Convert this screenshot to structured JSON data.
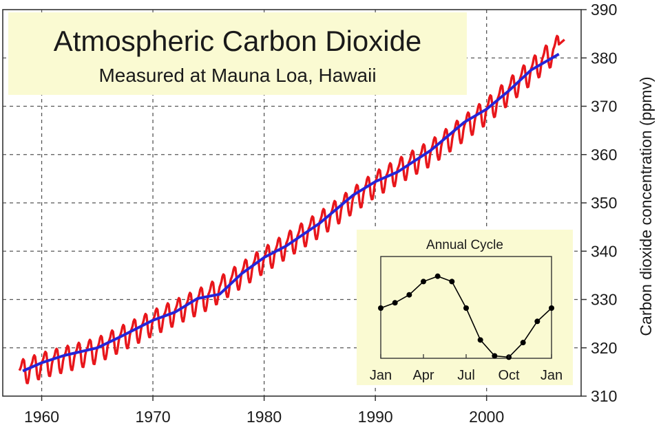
{
  "chart_data": [
    {
      "type": "line",
      "title": "Atmospheric Carbon Dioxide",
      "subtitle": "Measured at Mauna Loa, Hawaii",
      "xlabel": "",
      "ylabel": "Carbon dioxide concentration (ppmv)",
      "xlim": [
        1956.5,
        2008.5
      ],
      "ylim": [
        310,
        390
      ],
      "xticks": [
        1960,
        1970,
        1980,
        1990,
        2000
      ],
      "yticks": [
        310,
        320,
        330,
        340,
        350,
        360,
        370,
        380,
        390
      ],
      "grid": true,
      "y_axis_side": "right",
      "seasonal_amplitude_ppmv": 3.2,
      "series": [
        {
          "color": "#e8161b",
          "style": "monthly values with seasonal cycle",
          "x": [
            1958,
            1960,
            1965,
            1970,
            1975,
            1980,
            1985,
            1990,
            1995,
            2000,
            2005,
            2007
          ],
          "values": [
            315.3,
            316.9,
            320.0,
            325.7,
            331.1,
            338.7,
            346.1,
            354.4,
            360.9,
            369.5,
            379.8,
            383.8
          ]
        },
        {
          "color": "#2424d8",
          "style": "annual mean trend",
          "x": [
            1958.3,
            1960,
            1962,
            1965,
            1967,
            1970,
            1972,
            1974,
            1976,
            1978,
            1980,
            1982,
            1985,
            1988,
            1990,
            1992,
            1995,
            1998,
            2000,
            2002,
            2004,
            2006.5
          ],
          "values": [
            315.2,
            316.9,
            318.4,
            320.0,
            322.2,
            325.7,
            327.4,
            330.2,
            331.1,
            335.4,
            338.7,
            341.1,
            345.8,
            351.6,
            354.4,
            356.4,
            360.9,
            366.7,
            369.4,
            373.2,
            377.5,
            380.8
          ]
        }
      ]
    },
    {
      "type": "line",
      "title": "Annual Cycle",
      "categories": [
        "Jan",
        "Apr",
        "Jul",
        "Oct",
        "Jan"
      ],
      "grid": false,
      "series": [
        {
          "color": "#000000",
          "marker": "circle",
          "x": [
            0,
            1,
            2,
            3,
            4,
            5,
            6,
            7,
            8,
            9,
            10,
            11,
            12
          ],
          "values": [
            0.0,
            0.4,
            1.0,
            2.0,
            2.4,
            2.0,
            0.0,
            -2.4,
            -3.6,
            -3.7,
            -2.6,
            -1.0,
            0.0
          ]
        }
      ]
    }
  ]
}
